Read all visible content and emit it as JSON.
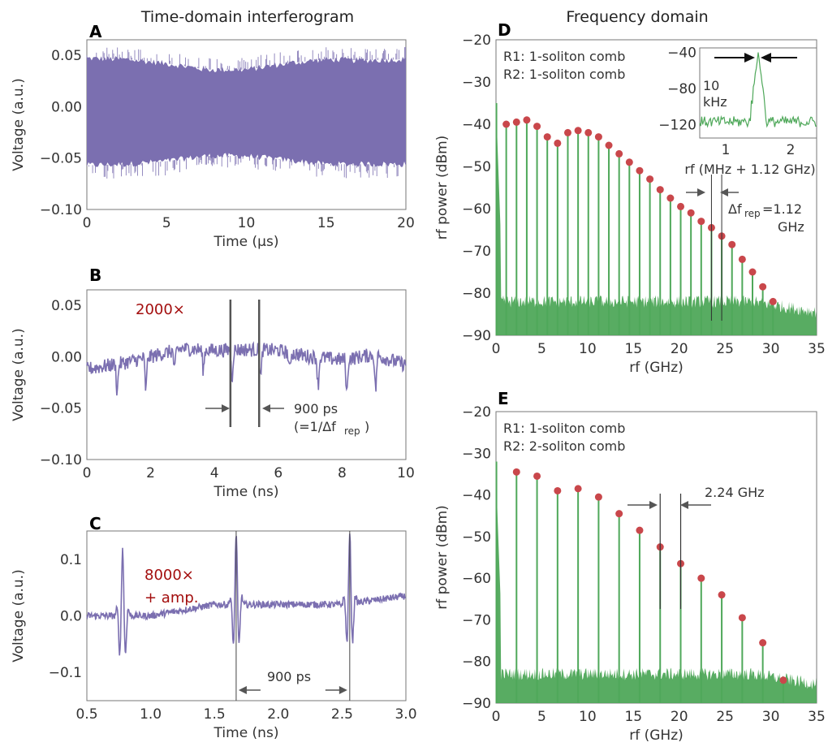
{
  "headings": {
    "left": "Time-domain interferogram",
    "right": "Frequency domain"
  },
  "colors": {
    "purple": "#7b6fb0",
    "green": "#4fa85a",
    "red_dot": "#c9474b",
    "annot_red": "#a30e0e",
    "marker": "#555555"
  },
  "chart_data": [
    {
      "panel": "A",
      "type": "line",
      "xlabel": "Time (µs)",
      "ylabel": "Voltage (a.u.)",
      "xlim": [
        0,
        20
      ],
      "ylim": [
        -0.1,
        0.065
      ],
      "xticks": [
        0,
        5,
        10,
        15,
        20
      ],
      "yticks": [
        -0.1,
        -0.05,
        0.0,
        0.05
      ],
      "ytick_labels": [
        "−0.10",
        "−0.05",
        "0.00",
        "0.05"
      ],
      "series": [
        {
          "envelope_x": [
            0,
            2.5,
            5,
            7.5,
            10,
            12.5,
            15,
            17.5,
            20
          ],
          "upper": [
            0.047,
            0.046,
            0.042,
            0.036,
            0.036,
            0.042,
            0.046,
            0.045,
            0.046
          ],
          "lower": [
            -0.057,
            -0.056,
            -0.053,
            -0.048,
            -0.048,
            -0.052,
            -0.056,
            -0.056,
            -0.056
          ]
        }
      ]
    },
    {
      "panel": "B",
      "type": "line",
      "xlabel": "Time (ns)",
      "ylabel": "Voltage (a.u.)",
      "xlim": [
        0,
        10
      ],
      "ylim": [
        -0.1,
        0.065
      ],
      "xticks": [
        0,
        2,
        4,
        6,
        8,
        10
      ],
      "yticks": [
        -0.1,
        -0.05,
        0.0,
        0.05
      ],
      "ytick_labels": [
        "−0.10",
        "−0.05",
        "0.00",
        "0.05"
      ],
      "annotation": "2000×",
      "marker_lines_x": [
        4.5,
        5.4
      ],
      "spacing_label": "900 ps",
      "spacing_sub": "(=1/Δf",
      "spacing_sub_rep": "rep",
      "spacing_close": ")",
      "series": [
        {
          "baseline_x": [
            0,
            1,
            2,
            3,
            4,
            5,
            6,
            7,
            8,
            9,
            10
          ],
          "baseline_y": [
            -0.012,
            -0.007,
            0.0,
            0.008,
            0.006,
            0.007,
            0.006,
            0.0,
            -0.003,
            0.002,
            -0.008
          ],
          "dips_x": [
            0.95,
            1.85,
            2.75,
            3.65,
            4.55,
            5.45,
            6.35,
            7.25,
            8.15,
            9.05
          ],
          "dip_depth": [
            -0.03,
            -0.035,
            -0.022,
            -0.022,
            -0.03,
            -0.03,
            -0.02,
            -0.03,
            -0.038,
            -0.038
          ]
        }
      ]
    },
    {
      "panel": "C",
      "type": "line",
      "xlabel": "Time (ns)",
      "ylabel": "Voltage (a.u.)",
      "xlim": [
        0.5,
        3.0
      ],
      "ylim": [
        -0.15,
        0.15
      ],
      "xticks": [
        0.5,
        1.0,
        1.5,
        2.0,
        2.5,
        3.0
      ],
      "xtick_labels": [
        "0.5",
        "1.0",
        "1.5",
        "2.0",
        "2.5",
        "3.0"
      ],
      "yticks": [
        -0.1,
        0.0,
        0.1
      ],
      "ytick_labels": [
        "−0.1",
        "0.0",
        "0.1"
      ],
      "annotation_line1": "8000×",
      "annotation_line2": "+ amp.",
      "marker_lines_x": [
        1.67,
        2.56
      ],
      "spacing_label": "900 ps",
      "series": [
        {
          "bursts_x": [
            0.78,
            1.67,
            2.56
          ],
          "burst_peak": [
            0.11,
            0.13,
            0.125
          ],
          "burst_trough": [
            -0.125,
            -0.12,
            -0.115
          ],
          "baseline_x": [
            0.5,
            1.0,
            1.5,
            2.0,
            2.5,
            3.0
          ],
          "baseline_y": [
            0.0,
            0.0,
            0.02,
            0.02,
            0.02,
            0.035
          ]
        }
      ]
    },
    {
      "panel": "D",
      "type": "bar",
      "xlabel": "rf (GHz)",
      "ylabel": "rf power (dBm)",
      "xlim": [
        0,
        35
      ],
      "ylim": [
        -90,
        -20
      ],
      "xticks": [
        0,
        5,
        10,
        15,
        20,
        25,
        30,
        35
      ],
      "yticks": [
        -90,
        -80,
        -70,
        -60,
        -50,
        -40,
        -30,
        -20
      ],
      "ytick_labels": [
        "−90",
        "−80",
        "−70",
        "−60",
        "−50",
        "−40",
        "−30",
        "−20"
      ],
      "legend_line1": "R1: 1-soliton comb",
      "legend_line2": "R2: 1-soliton comb",
      "spacing_label": "Δf",
      "spacing_sub": "rep",
      "spacing_value": "=1.12",
      "spacing_unit": "GHz",
      "noise_floor": -82,
      "x": [
        1.12,
        2.24,
        3.36,
        4.48,
        5.6,
        6.72,
        7.84,
        8.96,
        10.08,
        11.2,
        12.32,
        13.44,
        14.56,
        15.68,
        16.8,
        17.92,
        19.04,
        20.16,
        21.28,
        22.4,
        23.52,
        24.64,
        25.76,
        26.88,
        28.0,
        29.12,
        30.24
      ],
      "values": [
        -40,
        -39.5,
        -39,
        -40.5,
        -43,
        -44.5,
        -42,
        -41.5,
        -42,
        -43,
        -45,
        -47,
        -49,
        -51,
        -53,
        -55.5,
        -57.5,
        -59.5,
        -61,
        -63,
        -64.5,
        -66.5,
        -68.5,
        -72,
        -75,
        -78.5,
        -82
      ],
      "inset": {
        "xlabel": "rf (MHz + 1.12 GHz)",
        "xlim": [
          0.6,
          2.4
        ],
        "ylim": [
          -135,
          -35
        ],
        "xticks": [
          1,
          2
        ],
        "yticks": [
          -40,
          -80,
          -120
        ],
        "ytick_labels": [
          "−40",
          "−80",
          "−120"
        ],
        "label_line1": "10",
        "label_line2": "kHz",
        "peak_x": 1.5,
        "peak_y": -40,
        "noise_level": -117
      }
    },
    {
      "panel": "E",
      "type": "bar",
      "xlabel": "rf (GHz)",
      "ylabel": "rf power (dBm)",
      "xlim": [
        0,
        35
      ],
      "ylim": [
        -90,
        -20
      ],
      "xticks": [
        0,
        5,
        10,
        15,
        20,
        25,
        30,
        35
      ],
      "yticks": [
        -90,
        -80,
        -70,
        -60,
        -50,
        -40,
        -30,
        -20
      ],
      "ytick_labels": [
        "−90",
        "−80",
        "−70",
        "−60",
        "−50",
        "−40",
        "−30",
        "−20"
      ],
      "legend_line1": "R1: 1-soliton comb",
      "legend_line2": "R2: 2-soliton comb",
      "spacing_label": "2.24 GHz",
      "noise_floor": -83,
      "x": [
        2.24,
        4.48,
        6.72,
        8.96,
        11.2,
        13.44,
        15.68,
        17.92,
        20.16,
        22.4,
        24.64,
        26.88,
        29.12,
        31.36
      ],
      "values": [
        -34.5,
        -35.5,
        -39,
        -38.5,
        -40.5,
        -44.5,
        -48.5,
        -52.5,
        -56.5,
        -60,
        -64,
        -69.5,
        -75.5,
        -84.5
      ]
    }
  ]
}
